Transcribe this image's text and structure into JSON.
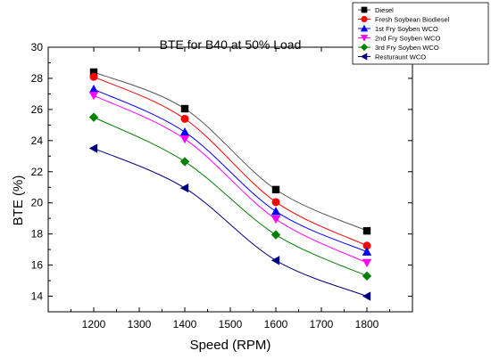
{
  "chart_data": {
    "type": "line",
    "title": "BTE for B40 at 50% Load",
    "xlabel": "Speed (RPM)",
    "ylabel": "BTE (%)",
    "xlim": [
      1100,
      1900
    ],
    "ylim": [
      13,
      30
    ],
    "xticks": [
      1200,
      1300,
      1400,
      1500,
      1600,
      1700,
      1800
    ],
    "yticks": [
      14,
      16,
      18,
      20,
      22,
      24,
      26,
      28,
      30
    ],
    "x": [
      1200,
      1400,
      1600,
      1800
    ],
    "legend_position": "top-right, outside plot",
    "grid": false,
    "series": [
      {
        "name": "Diesel",
        "values": [
          28.4,
          26.05,
          20.85,
          18.2
        ],
        "color": "#000000",
        "line_color": "#555555",
        "marker": "square"
      },
      {
        "name": "Fresh Soybean Biodiesel",
        "values": [
          28.1,
          25.4,
          20.05,
          17.25
        ],
        "color": "#ff0000",
        "line_color": "#ff0000",
        "marker": "circle"
      },
      {
        "name": "1st Fry Soyben WCO",
        "values": [
          27.3,
          24.55,
          19.45,
          16.85
        ],
        "color": "#0000ff",
        "line_color": "#0000ff",
        "marker": "triangle-up"
      },
      {
        "name": "2nd Fry Soyben WCO",
        "values": [
          26.9,
          24.1,
          18.95,
          16.15
        ],
        "color": "#ff00ff",
        "line_color": "#ff00ff",
        "marker": "triangle-down"
      },
      {
        "name": "3rd Fry Soyben WCO",
        "values": [
          25.5,
          22.65,
          17.95,
          15.3
        ],
        "color": "#008000",
        "line_color": "#008000",
        "marker": "diamond"
      },
      {
        "name": "Resturaunt WCO",
        "values": [
          23.5,
          20.95,
          16.3,
          14.0
        ],
        "color": "#000080",
        "line_color": "#000080",
        "marker": "triangle-left"
      }
    ]
  }
}
